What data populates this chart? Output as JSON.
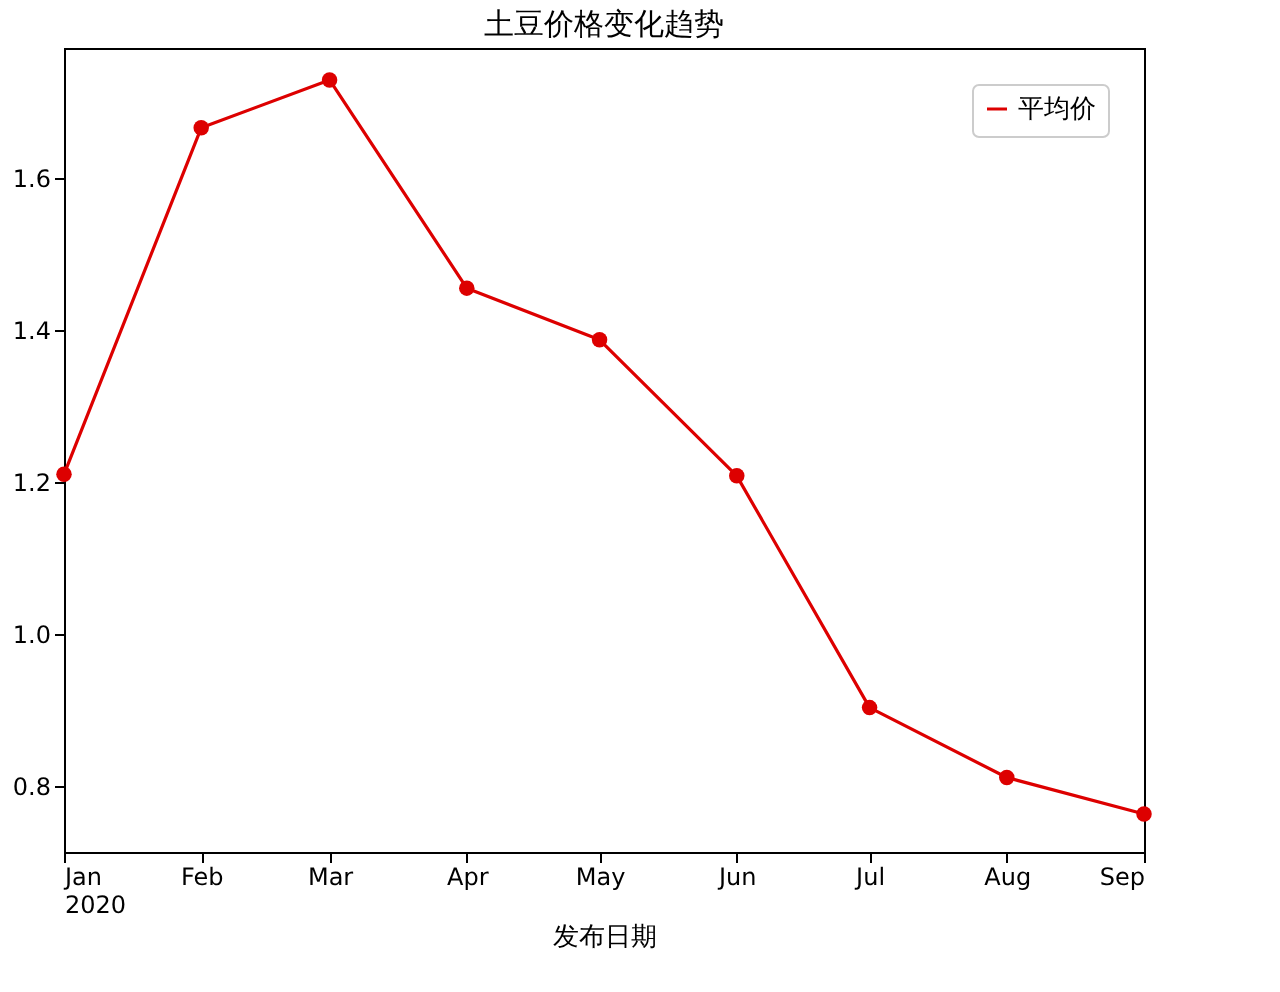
{
  "chart_data": {
    "type": "line",
    "title": "土豆价格变化趋势",
    "xlabel": "发布日期",
    "x": [
      "2020-01",
      "2020-02",
      "2020-03",
      "2020-04",
      "2020-05",
      "2020-06",
      "2020-07",
      "2020-08",
      "2020-09"
    ],
    "series": [
      {
        "name": "平均价",
        "color": "#dd0000",
        "values": [
          1.21,
          1.666,
          1.729,
          1.455,
          1.387,
          1.208,
          0.903,
          0.811,
          0.763
        ]
      }
    ],
    "xlim": [
      "2020-01",
      "2020-09"
    ],
    "xticks": [
      {
        "value": "2020-01",
        "label": "Jan\n2020"
      },
      {
        "value": "2020-02",
        "label": "Feb"
      },
      {
        "value": "2020-03",
        "label": "Mar"
      },
      {
        "value": "2020-04",
        "label": "Apr"
      },
      {
        "value": "2020-05",
        "label": "May"
      },
      {
        "value": "2020-06",
        "label": "Jun"
      },
      {
        "value": "2020-07",
        "label": "Jul"
      },
      {
        "value": "2020-08",
        "label": "Aug"
      },
      {
        "value": "2020-09",
        "label": "Sep"
      }
    ],
    "ylim": [
      0.713,
      1.771
    ],
    "yticks": [
      {
        "value": 0.8,
        "label": "0.8"
      },
      {
        "value": 1.0,
        "label": "1.0"
      },
      {
        "value": 1.2,
        "label": "1.2"
      },
      {
        "value": 1.4,
        "label": "1.4"
      },
      {
        "value": 1.6,
        "label": "1.6"
      }
    ],
    "grid": false,
    "legend": "top right",
    "marker": "circle",
    "line_style": "solid"
  }
}
